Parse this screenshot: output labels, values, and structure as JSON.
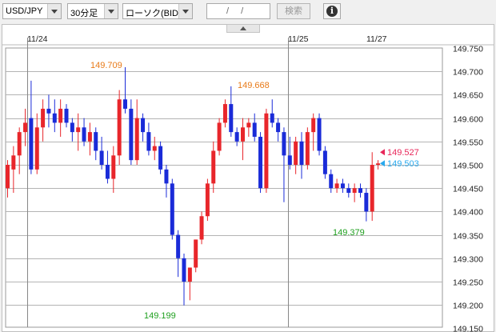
{
  "toolbar": {
    "pair": "USD/JPY",
    "interval": "30分足",
    "chart_kind": "ローソク(BID)",
    "date_value": "/ /",
    "search_label": "検索",
    "info_glyph": "i"
  },
  "colors": {
    "up": "#e8262b",
    "down": "#1a2bd8",
    "grid": "#b4b4b4",
    "high_label": "#e87a18",
    "low_label": "#20a020",
    "bid_marker": "#e8275a",
    "ask_marker": "#28a9ee"
  },
  "chart_data": {
    "type": "candlestick",
    "interval": "30分足",
    "date_labels": [
      "11/24",
      "11/25",
      "11/27"
    ],
    "ylim": [
      149.16,
      149.77
    ],
    "yticks": [
      "149.750",
      "149.700",
      "149.650",
      "149.600",
      "149.550",
      "149.500",
      "149.450",
      "149.400",
      "149.350",
      "149.300",
      "149.250",
      "149.200",
      "149.150"
    ],
    "annotations": {
      "high1": "149.709",
      "high2": "149.668",
      "low1": "149.199",
      "low2": "149.379",
      "bid": "149.527",
      "ask": "149.503"
    },
    "candles": [
      [
        149.45,
        149.51,
        149.43,
        149.5
      ],
      [
        149.49,
        149.54,
        149.44,
        149.52
      ],
      [
        149.52,
        149.58,
        149.48,
        149.57
      ],
      [
        149.57,
        149.62,
        149.54,
        149.59
      ],
      [
        149.6,
        149.68,
        149.48,
        149.49
      ],
      [
        149.49,
        149.61,
        149.48,
        149.58
      ],
      [
        149.58,
        149.64,
        149.55,
        149.62
      ],
      [
        149.62,
        149.65,
        149.58,
        149.61
      ],
      [
        149.61,
        149.64,
        149.57,
        149.59
      ],
      [
        149.59,
        149.64,
        149.56,
        149.62
      ],
      [
        149.62,
        149.63,
        149.58,
        149.59
      ],
      [
        149.59,
        149.6,
        149.55,
        149.57
      ],
      [
        149.57,
        149.61,
        149.53,
        149.58
      ],
      [
        149.58,
        149.6,
        149.54,
        149.55
      ],
      [
        149.55,
        149.59,
        149.52,
        149.57
      ],
      [
        149.57,
        149.58,
        149.51,
        149.53
      ],
      [
        149.53,
        149.56,
        149.49,
        149.5
      ],
      [
        149.5,
        149.53,
        149.46,
        149.47
      ],
      [
        149.47,
        149.54,
        149.44,
        149.52
      ],
      [
        149.52,
        149.66,
        149.5,
        149.64
      ],
      [
        149.64,
        149.709,
        149.61,
        149.62
      ],
      [
        149.62,
        149.64,
        149.5,
        149.51
      ],
      [
        149.51,
        149.64,
        149.5,
        149.6
      ],
      [
        149.6,
        149.61,
        149.55,
        149.57
      ],
      [
        149.57,
        149.59,
        149.52,
        149.53
      ],
      [
        149.53,
        149.56,
        149.51,
        149.54
      ],
      [
        149.54,
        149.55,
        149.48,
        149.49
      ],
      [
        149.49,
        149.5,
        149.43,
        149.46
      ],
      [
        149.46,
        149.47,
        149.34,
        149.35
      ],
      [
        149.35,
        149.36,
        149.26,
        149.3
      ],
      [
        149.3,
        149.31,
        149.199,
        149.25
      ],
      [
        149.25,
        149.28,
        149.21,
        149.28
      ],
      [
        149.28,
        149.34,
        149.27,
        149.34
      ],
      [
        149.34,
        149.4,
        149.33,
        149.39
      ],
      [
        149.39,
        149.47,
        149.38,
        149.46
      ],
      [
        149.46,
        149.55,
        149.44,
        149.53
      ],
      [
        149.53,
        149.6,
        149.52,
        149.59
      ],
      [
        149.59,
        149.64,
        149.58,
        149.63
      ],
      [
        149.63,
        149.668,
        149.56,
        149.57
      ],
      [
        149.57,
        149.58,
        149.54,
        149.55
      ],
      [
        149.55,
        149.6,
        149.51,
        149.58
      ],
      [
        149.58,
        149.6,
        149.56,
        149.59
      ],
      [
        149.59,
        149.61,
        149.55,
        149.56
      ],
      [
        149.56,
        149.57,
        149.44,
        149.45
      ],
      [
        149.45,
        149.62,
        149.44,
        149.61
      ],
      [
        149.61,
        149.64,
        149.58,
        149.59
      ],
      [
        149.59,
        149.6,
        149.55,
        149.57
      ],
      [
        149.57,
        149.58,
        149.42,
        149.52
      ],
      [
        149.52,
        149.56,
        149.49,
        149.5
      ],
      [
        149.5,
        149.56,
        149.48,
        149.55
      ],
      [
        149.55,
        149.57,
        149.47,
        149.5
      ],
      [
        149.5,
        149.58,
        149.49,
        149.57
      ],
      [
        149.57,
        149.61,
        149.53,
        149.6
      ],
      [
        149.6,
        149.61,
        149.52,
        149.53
      ],
      [
        149.53,
        149.54,
        149.47,
        149.48
      ],
      [
        149.48,
        149.49,
        149.44,
        149.45
      ],
      [
        149.45,
        149.47,
        149.44,
        149.46
      ],
      [
        149.46,
        149.47,
        149.44,
        149.45
      ],
      [
        149.45,
        149.46,
        149.43,
        149.44
      ],
      [
        149.44,
        149.46,
        149.42,
        149.45
      ],
      [
        149.45,
        149.46,
        149.43,
        149.44
      ],
      [
        149.44,
        149.45,
        149.379,
        149.4
      ],
      [
        149.4,
        149.527,
        149.38,
        149.5
      ],
      [
        149.5,
        149.51,
        149.49,
        149.503
      ]
    ]
  }
}
